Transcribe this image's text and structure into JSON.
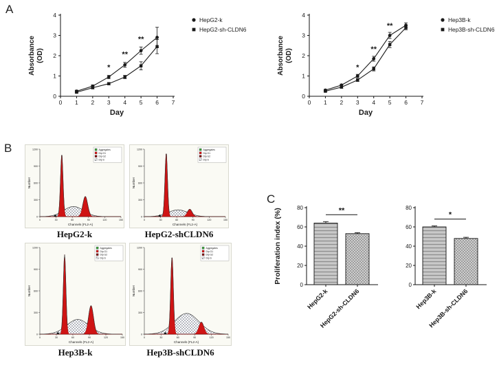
{
  "panel_labels": {
    "a": "A",
    "b": "B",
    "c": "C"
  },
  "colors": {
    "line": "#1a1a1a",
    "flow_red": "#cf1414",
    "bar_gray": "#c9c9c9"
  },
  "chart_data": [
    {
      "type": "line",
      "panel": "A",
      "x": [
        1,
        2,
        3,
        4,
        5,
        6
      ],
      "xlabel": "Day",
      "ylabel_lines": [
        "Absorbance",
        "(OD)"
      ],
      "xlim": [
        0,
        7
      ],
      "ylim": [
        0,
        4
      ],
      "xticks": [
        0,
        1,
        2,
        3,
        4,
        5,
        6,
        7
      ],
      "yticks": [
        0,
        1,
        2,
        3,
        4
      ],
      "legend_position": "right",
      "series": [
        {
          "name": "HepG2-k",
          "marker": "circle",
          "values": [
            0.25,
            0.5,
            0.95,
            1.55,
            2.25,
            2.9
          ],
          "errors": [
            0.05,
            0.06,
            0.08,
            0.12,
            0.18,
            0.5
          ]
        },
        {
          "name": "HepG2-sh-CLDN6",
          "marker": "square",
          "values": [
            0.2,
            0.42,
            0.62,
            0.95,
            1.5,
            2.45
          ],
          "errors": [
            0.04,
            0.05,
            0.06,
            0.08,
            0.2,
            0.35
          ]
        }
      ],
      "annotations": [
        {
          "x": 3,
          "y": 1.3,
          "text": "*"
        },
        {
          "x": 4,
          "y": 1.95,
          "text": "**"
        },
        {
          "x": 5,
          "y": 2.7,
          "text": "**"
        }
      ]
    },
    {
      "type": "line",
      "panel": "A",
      "x": [
        1,
        2,
        3,
        4,
        5,
        6
      ],
      "xlabel": "Day",
      "ylabel_lines": [
        "Absorbance",
        "(OD)"
      ],
      "xlim": [
        0,
        7
      ],
      "ylim": [
        0,
        4
      ],
      "xticks": [
        0,
        1,
        2,
        3,
        4,
        5,
        6,
        7
      ],
      "yticks": [
        0,
        1,
        2,
        3,
        4
      ],
      "legend_position": "right",
      "series": [
        {
          "name": "Hep3B-k",
          "marker": "circle",
          "values": [
            0.3,
            0.55,
            1.0,
            1.85,
            3.0,
            3.5
          ],
          "errors": [
            0.04,
            0.05,
            0.08,
            0.12,
            0.15,
            0.12
          ]
        },
        {
          "name": "Hep3B-sh-CLDN6",
          "marker": "square",
          "values": [
            0.25,
            0.45,
            0.8,
            1.35,
            2.55,
            3.38
          ],
          "errors": [
            0.04,
            0.05,
            0.07,
            0.1,
            0.15,
            0.1
          ]
        }
      ],
      "annotations": [
        {
          "x": 3,
          "y": 1.3,
          "text": "*"
        },
        {
          "x": 4,
          "y": 2.2,
          "text": "**"
        },
        {
          "x": 5,
          "y": 3.35,
          "text": "**"
        }
      ]
    },
    {
      "type": "area",
      "panel": "B",
      "subtype": "flow-cytometry-histogram",
      "title": "HepG2-k",
      "xlabel": "Channels (FL2-A)",
      "ylabel": "Number",
      "yticks": [
        0,
        300,
        600,
        900,
        1200
      ],
      "xticks": [
        0,
        30,
        60,
        90,
        120,
        150
      ],
      "legend": [
        {
          "label": "Aggregates",
          "color": "#3a9a3a"
        },
        {
          "label": "Dip G1",
          "color": "#cf1414"
        },
        {
          "label": "Dip G2",
          "color": "#7a0d0d"
        },
        {
          "label": "Dip S",
          "color": "hatch"
        }
      ],
      "g1_x": 0.27,
      "g1_h": 0.93,
      "g2_x": 0.56,
      "g2_h": 0.3,
      "s_h": 0.15
    },
    {
      "type": "area",
      "panel": "B",
      "subtype": "flow-cytometry-histogram",
      "title": "HepG2-shCLDN6",
      "xlabel": "Channels (FL2-A)",
      "ylabel": "Number",
      "yticks": [
        0,
        300,
        600,
        900,
        1200
      ],
      "xticks": [
        0,
        30,
        60,
        90,
        120,
        150
      ],
      "legend": [
        {
          "label": "Aggregates",
          "color": "#3a9a3a"
        },
        {
          "label": "Dip G1",
          "color": "#cf1414"
        },
        {
          "label": "Dip G2",
          "color": "#7a0d0d"
        },
        {
          "label": "Dip S",
          "color": "hatch"
        }
      ],
      "g1_x": 0.27,
      "g1_h": 0.95,
      "g2_x": 0.56,
      "g2_h": 0.11,
      "s_h": 0.1
    },
    {
      "type": "area",
      "panel": "B",
      "subtype": "flow-cytometry-histogram",
      "title": "Hep3B-k",
      "xlabel": "Channels (FL2-A)",
      "ylabel": "Number",
      "yticks": [
        0,
        300,
        600,
        900,
        1200
      ],
      "xticks": [
        0,
        30,
        60,
        90,
        120,
        150
      ],
      "legend": [
        {
          "label": "Aggregates",
          "color": "#3a9a3a"
        },
        {
          "label": "Dip G1",
          "color": "#cf1414"
        },
        {
          "label": "Dip G2",
          "color": "#7a0d0d"
        },
        {
          "label": "Dip S",
          "color": "hatch"
        }
      ],
      "g1_x": 0.3,
      "g1_h": 0.92,
      "g2_x": 0.62,
      "g2_h": 0.33,
      "s_h": 0.17
    },
    {
      "type": "area",
      "panel": "B",
      "subtype": "flow-cytometry-histogram",
      "title": "Hep3B-shCLDN6",
      "xlabel": "Channels (FL2-A)",
      "ylabel": "Number",
      "yticks": [
        0,
        300,
        600,
        900,
        1200
      ],
      "xticks": [
        0,
        30,
        60,
        90,
        120,
        150
      ],
      "legend": [
        {
          "label": "Aggregates",
          "color": "#3a9a3a"
        },
        {
          "label": "Dip G1",
          "color": "#cf1414"
        },
        {
          "label": "Dip G2",
          "color": "#7a0d0d"
        },
        {
          "label": "Dip S",
          "color": "hatch"
        }
      ],
      "g1_x": 0.33,
      "g1_h": 0.9,
      "g2_x": 0.68,
      "g2_h": 0.14,
      "s_h": 0.24
    },
    {
      "type": "bar",
      "panel": "C",
      "ylabel": "Proliferation index (%)",
      "ylim": [
        0,
        80
      ],
      "yticks": [
        0,
        20,
        40,
        60,
        80
      ],
      "categories": [
        "HepG2-k",
        "HepG2-sh-CLDN6"
      ],
      "values": [
        64,
        53
      ],
      "errors": [
        1.5,
        1
      ],
      "sig": "**"
    },
    {
      "type": "bar",
      "panel": "C",
      "ylim": [
        0,
        80
      ],
      "yticks": [
        0,
        20,
        40,
        60,
        80
      ],
      "categories": [
        "Hep3B-k",
        "Hep3B-sh-CLDN6"
      ],
      "values": [
        60,
        48
      ],
      "errors": [
        1,
        1.2
      ],
      "sig": "*"
    }
  ]
}
